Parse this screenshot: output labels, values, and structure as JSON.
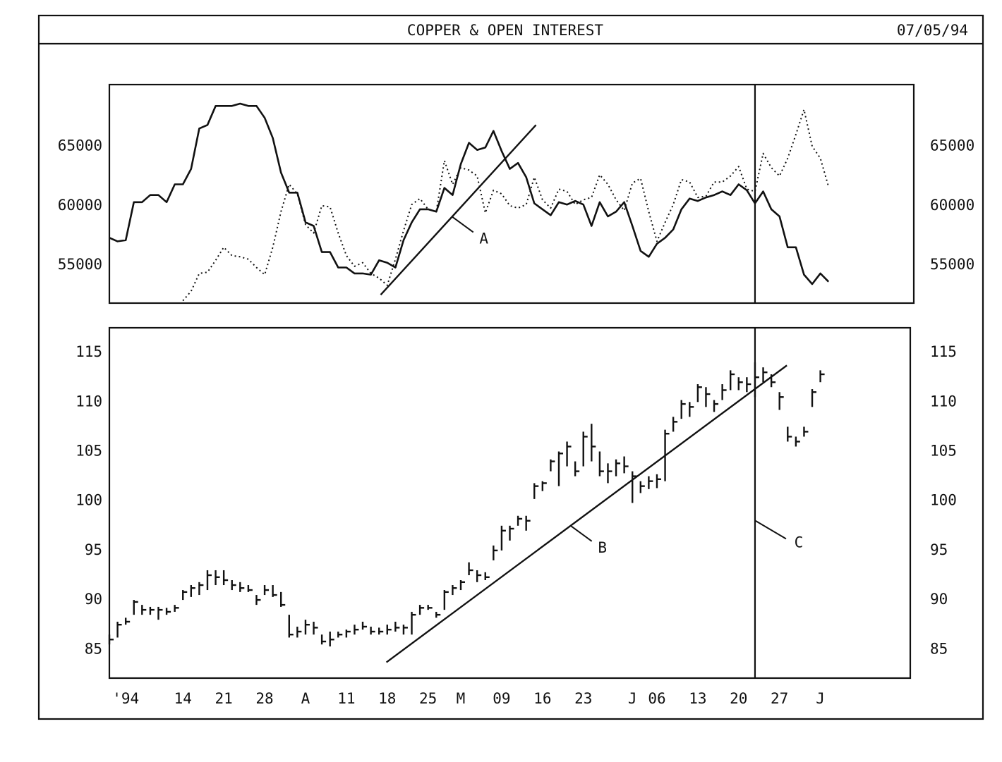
{
  "header": {
    "title": "COPPER & OPEN INTEREST",
    "date": "07/05/94"
  },
  "chart_data": [
    {
      "type": "line",
      "xlim": [
        0,
        98
      ],
      "ylim": [
        51800,
        70200
      ],
      "yticks": [
        55000,
        60000,
        65000
      ],
      "series": [
        {
          "color": "#111111",
          "style": "solid",
          "values": [
            57300,
            57000,
            57100,
            60300,
            60300,
            60900,
            60900,
            60300,
            61800,
            61800,
            63100,
            66500,
            66800,
            68400,
            68400,
            68400,
            68600,
            68400,
            68400,
            67400,
            65700,
            62800,
            61100,
            61100,
            58600,
            58300,
            56100,
            56100,
            54800,
            54800,
            54300,
            54300,
            54200,
            55400,
            55200,
            54800,
            57100,
            58600,
            59700,
            59700,
            59500,
            61500,
            60900,
            63500,
            65300,
            64700,
            64900,
            66300,
            64600,
            63100,
            63600,
            62400,
            60200,
            59700,
            59200,
            60300,
            60100,
            60400,
            60100,
            58300,
            60300,
            59100,
            59500,
            60300,
            58300,
            56200,
            55700,
            56800,
            57300,
            58000,
            59700,
            60600,
            60400,
            60700,
            60900,
            61200,
            60900,
            61800,
            61300,
            60200,
            61200,
            59700,
            59100,
            56500,
            56500,
            54200,
            53400,
            54300,
            53600
          ]
        },
        {
          "color": "#111111",
          "style": "dotted",
          "values": [
            null,
            null,
            null,
            null,
            null,
            null,
            null,
            null,
            null,
            52000,
            52800,
            54300,
            54400,
            55400,
            56500,
            55800,
            55700,
            55500,
            54800,
            54200,
            56500,
            59500,
            61800,
            61000,
            58400,
            57700,
            60000,
            59900,
            57700,
            55800,
            54900,
            55200,
            54300,
            53900,
            53300,
            55500,
            57900,
            60100,
            60600,
            59700,
            59500,
            63800,
            61800,
            63200,
            63000,
            62500,
            59400,
            61300,
            61000,
            60000,
            59800,
            60100,
            62400,
            60500,
            59800,
            61400,
            61200,
            60100,
            60500,
            60700,
            62600,
            61800,
            60500,
            59600,
            61900,
            62300,
            59500,
            57000,
            58600,
            60100,
            62200,
            62000,
            60700,
            60800,
            62000,
            62000,
            62500,
            63300,
            61400,
            61200,
            64400,
            63200,
            62500,
            64000,
            66000,
            68100,
            65000,
            64000,
            61600
          ]
        }
      ],
      "annotations": [
        {
          "text": "A",
          "x": [
            33.2,
            52.2
          ],
          "y": [
            52500,
            66800
          ]
        },
        {
          "x": 79
        }
      ]
    },
    {
      "type": "ohlc",
      "xlim": [
        0,
        98
      ],
      "ylim": [
        82.1,
        117.5
      ],
      "yticks": [
        85,
        90,
        95,
        100,
        105,
        110,
        115
      ],
      "xticks": [
        {
          "value": 2,
          "label": "'94"
        },
        {
          "value": 9,
          "label": "14"
        },
        {
          "value": 14,
          "label": "21"
        },
        {
          "value": 19,
          "label": "28"
        },
        {
          "value": 24,
          "label": "A"
        },
        {
          "value": 29,
          "label": "11"
        },
        {
          "value": 34,
          "label": "18"
        },
        {
          "value": 39,
          "label": "25"
        },
        {
          "value": 43,
          "label": "M"
        },
        {
          "value": 48,
          "label": "09"
        },
        {
          "value": 53,
          "label": "16"
        },
        {
          "value": 58,
          "label": "23"
        },
        {
          "value": 64,
          "label": "J"
        },
        {
          "value": 67,
          "label": "06"
        },
        {
          "value": 72,
          "label": "13"
        },
        {
          "value": 77,
          "label": "20"
        },
        {
          "value": 82,
          "label": "27"
        },
        {
          "value": 87,
          "label": "J"
        }
      ],
      "color": "#111111",
      "high": [
        86.5,
        87.8,
        88.2,
        90,
        89.5,
        89.3,
        89.3,
        89.2,
        89.5,
        91,
        91.5,
        91.8,
        93,
        93,
        93,
        92,
        91.8,
        91.5,
        90.5,
        91.5,
        91.5,
        90.8,
        88.5,
        87.3,
        88,
        87.8,
        86.5,
        86.8,
        86.8,
        87,
        87.5,
        87.8,
        87.3,
        87.2,
        87.5,
        87.8,
        87.5,
        88.8,
        89.5,
        89.5,
        88.8,
        91,
        91.5,
        92,
        93.8,
        93,
        92.8,
        95.5,
        97.5,
        97.5,
        98.5,
        98.5,
        101.8,
        102,
        104.2,
        105,
        106,
        104,
        107,
        107.8,
        105,
        103.8,
        104.2,
        104.5,
        103,
        102,
        102.5,
        102.7,
        107.2,
        108.5,
        110.2,
        110,
        111.8,
        111.5,
        110.2,
        111.8,
        113.2,
        112.5,
        112.5,
        114,
        113.5,
        112.8,
        111,
        107.5,
        106.5,
        107.5,
        111.3,
        113.2
      ],
      "low": [
        85.5,
        86.2,
        87.5,
        88.5,
        88.5,
        88.5,
        88,
        88.5,
        88.8,
        90,
        90.3,
        90.5,
        91,
        91.5,
        91.5,
        91,
        90.8,
        90.8,
        89.5,
        90.5,
        90.3,
        89.3,
        86.2,
        86.2,
        86.5,
        86.5,
        85.5,
        85.3,
        86.2,
        86.2,
        86.5,
        87,
        86.5,
        86.5,
        86.5,
        86.8,
        86.5,
        86.5,
        88.5,
        89,
        88.2,
        89,
        90.5,
        91,
        92.5,
        91.8,
        92,
        94,
        95,
        96,
        97.5,
        97,
        100.2,
        101,
        103,
        101.5,
        103.5,
        102.5,
        103.5,
        104,
        102.5,
        101.8,
        102.5,
        102.8,
        99.8,
        100.8,
        101.2,
        101.3,
        102,
        107,
        108.3,
        108.5,
        110,
        109.5,
        109,
        110.2,
        111.2,
        111.2,
        111,
        110.5,
        112,
        111.5,
        109.2,
        106,
        105.5,
        106.5,
        109.5,
        112
      ],
      "close": [
        86,
        87.5,
        87.8,
        89.8,
        89,
        89,
        89,
        88.8,
        89.2,
        90.8,
        91.2,
        91.5,
        92.5,
        92.3,
        92,
        91.5,
        91.2,
        91,
        90,
        91,
        90.5,
        89.5,
        86.5,
        86.8,
        87.5,
        87.2,
        85.8,
        86,
        86.5,
        86.8,
        87,
        87.3,
        86.8,
        86.8,
        87,
        87.2,
        87.2,
        88.5,
        89.2,
        89.2,
        88.5,
        90.8,
        91.2,
        91.8,
        93,
        92.5,
        92.3,
        95,
        97,
        97.2,
        98.2,
        98,
        101.5,
        101.8,
        104,
        104.8,
        105.5,
        103,
        106.5,
        105.5,
        103,
        103,
        103.8,
        103.5,
        102.5,
        101.5,
        102,
        102.2,
        106.8,
        108,
        109.8,
        109.5,
        111.5,
        110.8,
        109.8,
        111.2,
        112.8,
        112,
        111.8,
        112.5,
        113,
        112,
        110.5,
        106.5,
        106,
        107,
        111,
        112.8
      ],
      "annotations": [
        {
          "text": "B",
          "x": [
            33.9,
            82.9
          ],
          "y": [
            83.7,
            113.7
          ]
        },
        {
          "text": "C",
          "x": 79
        }
      ]
    }
  ]
}
